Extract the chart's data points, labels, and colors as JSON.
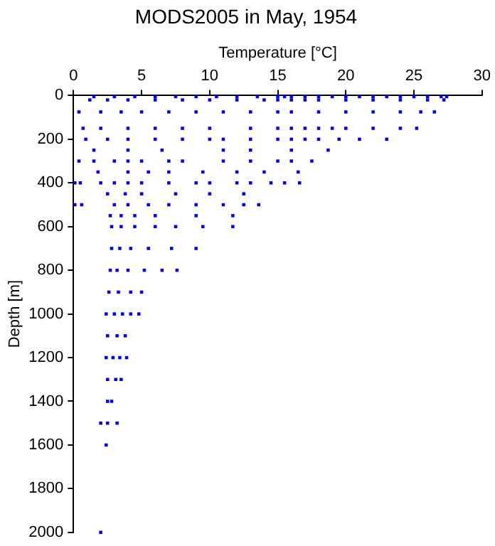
{
  "chart_data": {
    "type": "scatter",
    "title": "MODS2005 in May, 1954",
    "xlabel": "Temperature [°C]",
    "ylabel": "Depth [m]",
    "xlim": [
      0,
      30
    ],
    "xticks": [
      0,
      5,
      10,
      15,
      20,
      25,
      30
    ],
    "ylim": [
      2000,
      0
    ],
    "yticks": [
      0,
      200,
      400,
      600,
      800,
      1000,
      1200,
      1400,
      1600,
      1800,
      2000
    ],
    "grid": false,
    "legend": false,
    "marker": "square",
    "series": [
      {
        "color": "#0000ff",
        "x": [
          1.5,
          3,
          4.5,
          6,
          7.5,
          9,
          10.5,
          12,
          13.5,
          15,
          15.5,
          16,
          17,
          18,
          19,
          20,
          21,
          22,
          23,
          24,
          25,
          26,
          27,
          27.4,
          1.2,
          2.5,
          4,
          6,
          8,
          10,
          12,
          14,
          15,
          16,
          17,
          18,
          20,
          22,
          24,
          26,
          27.2,
          0.4,
          2,
          3.5,
          5,
          7,
          9,
          11,
          13,
          15,
          16,
          18,
          20,
          22,
          24,
          25.5,
          26.5,
          0.7,
          2,
          4,
          6,
          8,
          10,
          13,
          15,
          16,
          17,
          18,
          19,
          20,
          22,
          24,
          25.2,
          0.9,
          2.5,
          4,
          6,
          8,
          10,
          11,
          13,
          15,
          16,
          17,
          18,
          19.5,
          21,
          23,
          1.5,
          4,
          6.5,
          11,
          13,
          16,
          18.7,
          0.4,
          1.5,
          3,
          4,
          5,
          7,
          8,
          11,
          13,
          15,
          16,
          17.5,
          1.8,
          4,
          5.5,
          7,
          9.5,
          12,
          14,
          16.5,
          0.1,
          0.5,
          2,
          3,
          4,
          5,
          7,
          9,
          10,
          12,
          13,
          14.5,
          15.5,
          16.6,
          2.5,
          3.8,
          5,
          7.5,
          10,
          12.5,
          0.1,
          0.6,
          3,
          4,
          5.5,
          7,
          9,
          11,
          12.5,
          13.6,
          2.7,
          3.5,
          4.5,
          6,
          9,
          11.7,
          2.8,
          3.5,
          4.5,
          6,
          7.5,
          9.5,
          11.7,
          2.8,
          3.4,
          4.2,
          5.5,
          7.2,
          9,
          2.7,
          3.2,
          4,
          5.2,
          6.5,
          7.6,
          2.6,
          3.3,
          4.2,
          5,
          2.4,
          3,
          3.6,
          4.2,
          4.8,
          2.5,
          3.2,
          3.8,
          2.4,
          2.9,
          3.4,
          3.9,
          2.5,
          3.1,
          3.5,
          2.5,
          2.8,
          2,
          2.5,
          3.2,
          2.4,
          2
        ],
        "values": [
          5,
          5,
          5,
          5,
          5,
          5,
          5,
          5,
          5,
          5,
          5,
          5,
          5,
          5,
          5,
          5,
          5,
          5,
          5,
          5,
          5,
          5,
          5,
          5,
          20,
          20,
          20,
          20,
          20,
          20,
          20,
          20,
          20,
          20,
          20,
          20,
          20,
          20,
          20,
          20,
          20,
          75,
          75,
          75,
          75,
          75,
          75,
          75,
          75,
          75,
          75,
          75,
          75,
          75,
          75,
          75,
          75,
          150,
          150,
          150,
          150,
          150,
          150,
          150,
          150,
          150,
          150,
          150,
          150,
          150,
          150,
          150,
          150,
          200,
          200,
          200,
          200,
          200,
          200,
          200,
          200,
          200,
          200,
          200,
          200,
          200,
          200,
          200,
          250,
          250,
          250,
          250,
          250,
          250,
          250,
          300,
          300,
          300,
          300,
          300,
          300,
          300,
          300,
          300,
          300,
          300,
          300,
          350,
          350,
          350,
          350,
          350,
          350,
          350,
          350,
          400,
          400,
          400,
          400,
          400,
          400,
          400,
          400,
          400,
          400,
          400,
          400,
          400,
          400,
          450,
          450,
          450,
          450,
          450,
          450,
          500,
          500,
          500,
          500,
          500,
          500,
          500,
          500,
          500,
          500,
          550,
          550,
          550,
          550,
          550,
          550,
          600,
          600,
          600,
          600,
          600,
          600,
          600,
          700,
          700,
          700,
          700,
          700,
          700,
          800,
          800,
          800,
          800,
          800,
          800,
          900,
          900,
          900,
          900,
          1000,
          1000,
          1000,
          1000,
          1000,
          1100,
          1100,
          1100,
          1200,
          1200,
          1200,
          1200,
          1300,
          1300,
          1300,
          1400,
          1400,
          1500,
          1500,
          1500,
          1600,
          2000
        ]
      }
    ]
  }
}
